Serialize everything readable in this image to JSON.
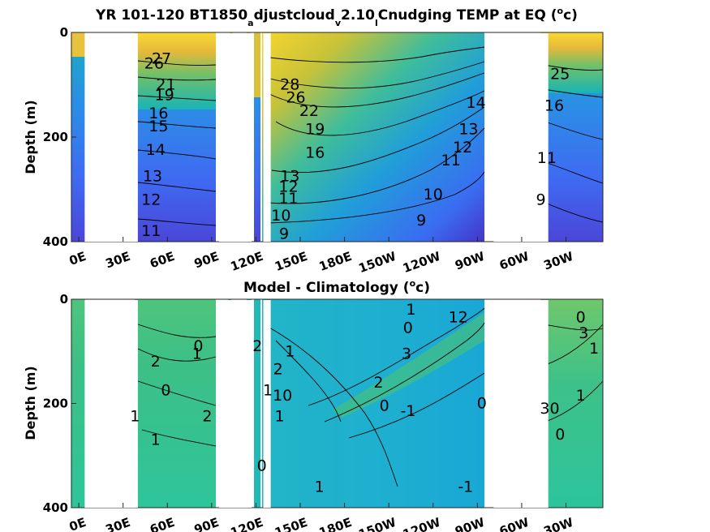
{
  "chart_data": [
    {
      "type": "heatmap",
      "title": "YR 101-120 BT1850",
      "title_subscripts": [
        {
          "sub": "a",
          "after": "djustcloud"
        },
        {
          "sub": "v",
          "after": "2.10"
        },
        {
          "sub": "l",
          "after": "Cnudging TEMP at EQ ("
        }
      ],
      "title_parts": [
        "YR 101-120 BT1850",
        "a",
        "djustcloud",
        "v",
        "2.10",
        "l",
        "Cnudging TEMP at EQ (",
        "o",
        "c)"
      ],
      "ylabel": "Depth (m)",
      "ylim": [
        0,
        400
      ],
      "y_reversed": true,
      "yticks": [
        "0",
        "200",
        "400"
      ],
      "ytick_values": [
        0,
        200,
        400
      ],
      "xticks": [
        "0E",
        "30E",
        "60E",
        "90E",
        "120E",
        "150E",
        "180E",
        "150W",
        "120W",
        "90W",
        "60W",
        "30W"
      ],
      "xtick_values": [
        0,
        30,
        60,
        90,
        120,
        150,
        180,
        210,
        240,
        270,
        300,
        330
      ],
      "xlim": [
        -5,
        355
      ],
      "land_gaps": [
        [
          4,
          40
        ],
        [
          95,
          117
        ],
        [
          125,
          130
        ],
        [
          281,
          318
        ]
      ],
      "colormap": "parula",
      "color_range": [
        8,
        30
      ],
      "contour_labels": [
        {
          "text": "27",
          "lon": 56,
          "depth": 50
        },
        {
          "text": "26",
          "lon": 51,
          "depth": 60
        },
        {
          "text": "21",
          "lon": 59,
          "depth": 100
        },
        {
          "text": "19",
          "lon": 58,
          "depth": 120
        },
        {
          "text": "16",
          "lon": 54,
          "depth": 155
        },
        {
          "text": "15",
          "lon": 54,
          "depth": 180
        },
        {
          "text": "14",
          "lon": 52,
          "depth": 225
        },
        {
          "text": "13",
          "lon": 50,
          "depth": 275
        },
        {
          "text": "12",
          "lon": 49,
          "depth": 320
        },
        {
          "text": "11",
          "lon": 49,
          "depth": 380
        },
        {
          "text": "28",
          "lon": 143,
          "depth": 100
        },
        {
          "text": "26",
          "lon": 147,
          "depth": 125
        },
        {
          "text": "22",
          "lon": 156,
          "depth": 150
        },
        {
          "text": "19",
          "lon": 160,
          "depth": 185
        },
        {
          "text": "16",
          "lon": 160,
          "depth": 230
        },
        {
          "text": "13",
          "lon": 143,
          "depth": 275
        },
        {
          "text": "12",
          "lon": 142,
          "depth": 295
        },
        {
          "text": "11",
          "lon": 142,
          "depth": 318
        },
        {
          "text": "10",
          "lon": 137,
          "depth": 350
        },
        {
          "text": "9",
          "lon": 139,
          "depth": 385
        },
        {
          "text": "14",
          "lon": 269,
          "depth": 135
        },
        {
          "text": "13",
          "lon": 264,
          "depth": 185
        },
        {
          "text": "12",
          "lon": 260,
          "depth": 220
        },
        {
          "text": "11",
          "lon": 252,
          "depth": 245
        },
        {
          "text": "10",
          "lon": 240,
          "depth": 310
        },
        {
          "text": "9",
          "lon": 232,
          "depth": 360
        },
        {
          "text": "25",
          "lon": 326,
          "depth": 80
        },
        {
          "text": "16",
          "lon": 322,
          "depth": 140
        },
        {
          "text": "11",
          "lon": 317,
          "depth": 240
        },
        {
          "text": "9",
          "lon": 313,
          "depth": 320
        }
      ]
    },
    {
      "type": "heatmap",
      "title": "Model - Climatology (",
      "title_sup": "o",
      "title_end": "c)",
      "ylabel": "Depth (m)",
      "ylim": [
        0,
        400
      ],
      "y_reversed": true,
      "yticks": [
        "0",
        "200",
        "400"
      ],
      "ytick_values": [
        0,
        200,
        400
      ],
      "xticks": [
        "0E",
        "30E",
        "60E",
        "90E",
        "120E",
        "150E",
        "180E",
        "150W",
        "120W",
        "90W",
        "60W",
        "30W"
      ],
      "xtick_values": [
        0,
        30,
        60,
        90,
        120,
        150,
        180,
        210,
        240,
        270,
        300,
        330
      ],
      "xlim": [
        -5,
        355
      ],
      "land_gaps": [
        [
          4,
          40
        ],
        [
          95,
          117
        ],
        [
          125,
          130
        ],
        [
          281,
          318
        ]
      ],
      "colormap": "parula",
      "color_range": [
        -4,
        4
      ],
      "contour_labels": [
        {
          "text": "2",
          "lon": 52,
          "depth": 120
        },
        {
          "text": "1",
          "lon": 80,
          "depth": 105
        },
        {
          "text": "0",
          "lon": 81,
          "depth": 90
        },
        {
          "text": "0",
          "lon": 59,
          "depth": 175
        },
        {
          "text": "2",
          "lon": 87,
          "depth": 225
        },
        {
          "text": "1",
          "lon": 38,
          "depth": 225
        },
        {
          "text": "1",
          "lon": 52,
          "depth": 270
        },
        {
          "text": "2",
          "lon": 121,
          "depth": 90
        },
        {
          "text": "1",
          "lon": 128,
          "depth": 175
        },
        {
          "text": "1",
          "lon": 136,
          "depth": 225
        },
        {
          "text": "0",
          "lon": 124,
          "depth": 320
        },
        {
          "text": "1",
          "lon": 143,
          "depth": 100
        },
        {
          "text": "2",
          "lon": 135,
          "depth": 135
        },
        {
          "text": "10",
          "lon": 138,
          "depth": 185
        },
        {
          "text": "1",
          "lon": 163,
          "depth": 360
        },
        {
          "text": "2",
          "lon": 203,
          "depth": 160
        },
        {
          "text": "3",
          "lon": 222,
          "depth": 105
        },
        {
          "text": "0",
          "lon": 223,
          "depth": 55
        },
        {
          "text": "1",
          "lon": 225,
          "depth": 20
        },
        {
          "text": "0",
          "lon": 207,
          "depth": 205
        },
        {
          "text": "-1",
          "lon": 223,
          "depth": 215
        },
        {
          "text": "12",
          "lon": 257,
          "depth": 35
        },
        {
          "text": "0",
          "lon": 273,
          "depth": 200
        },
        {
          "text": "-1",
          "lon": 262,
          "depth": 360
        },
        {
          "text": "0",
          "lon": 340,
          "depth": 35
        },
        {
          "text": "3",
          "lon": 342,
          "depth": 65
        },
        {
          "text": "1",
          "lon": 340,
          "depth": 185
        },
        {
          "text": "30",
          "lon": 319,
          "depth": 210
        },
        {
          "text": "0",
          "lon": 326,
          "depth": 260
        },
        {
          "text": "1",
          "lon": 349,
          "depth": 95
        }
      ]
    }
  ]
}
